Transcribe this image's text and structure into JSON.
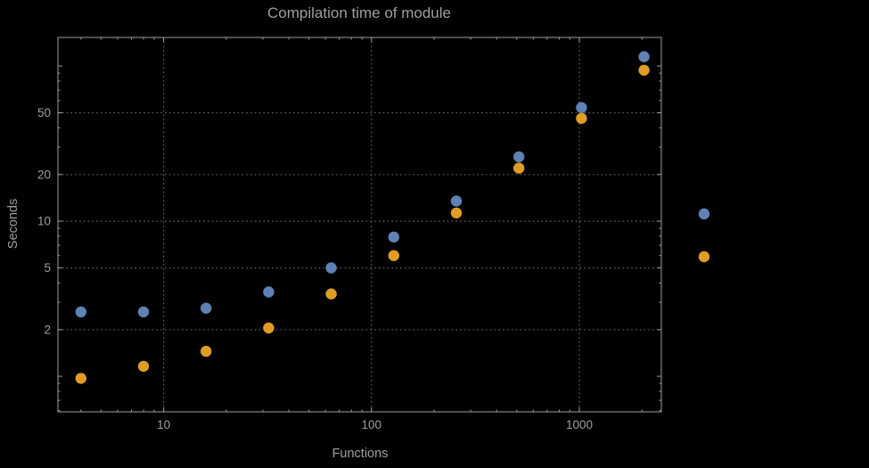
{
  "title": "Compilation time of module",
  "x_axis": {
    "label": "Functions",
    "tick_labels": [
      "10",
      "100",
      "1000"
    ],
    "tick_values": [
      10,
      100,
      1000
    ]
  },
  "y_axis": {
    "label": "Seconds",
    "tick_labels": [
      "2",
      "5",
      "10",
      "20",
      "50"
    ],
    "tick_values": [
      2,
      5,
      10,
      20,
      50
    ]
  },
  "colors": {
    "background": "#000000",
    "frame": "#9d9d9d",
    "grid": "#646464",
    "text": "#9f9f9f",
    "series_blue": "#5e82b5",
    "series_orange": "#e09c24"
  },
  "chart_data": {
    "type": "scatter",
    "title": "Compilation time of module",
    "xlabel": "Functions",
    "ylabel": "Seconds",
    "x_scale": "log",
    "y_scale": "log",
    "xlim": [
      3.1,
      2480
    ],
    "ylim": [
      0.59,
      153
    ],
    "grid": true,
    "legend_position": "right-outside",
    "x": [
      4,
      8,
      16,
      32,
      64,
      128,
      256,
      512,
      1024,
      2048
    ],
    "series": [
      {
        "name": "blue",
        "color": "#5e82b5",
        "values": [
          2.6,
          2.6,
          2.75,
          3.5,
          5.0,
          7.9,
          13.5,
          26,
          54,
          115
        ]
      },
      {
        "name": "orange",
        "color": "#e09c24",
        "values": [
          0.97,
          1.16,
          1.45,
          2.05,
          3.4,
          6.0,
          11.3,
          22,
          46,
          94
        ]
      }
    ]
  }
}
